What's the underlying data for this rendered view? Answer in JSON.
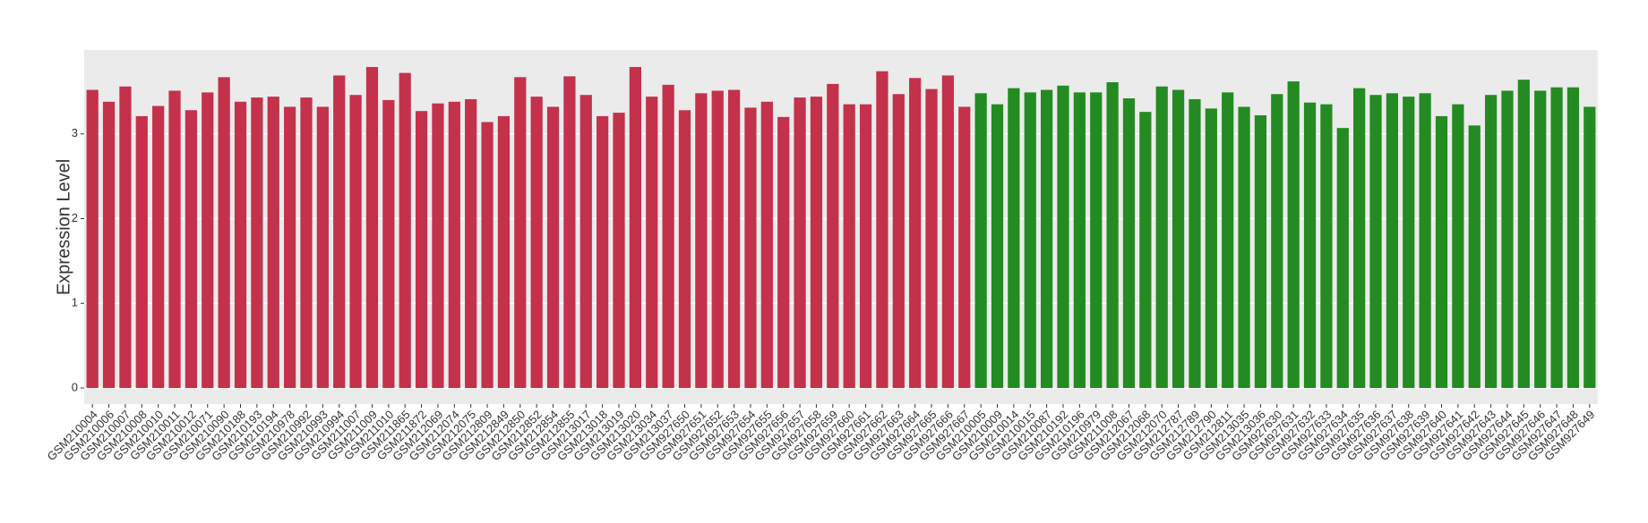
{
  "chart_data": {
    "type": "bar",
    "y_label": "Expression Level",
    "categories": [
      "GSM210004",
      "GSM210006",
      "GSM210007",
      "GSM210008",
      "GSM210010",
      "GSM210011",
      "GSM210012",
      "GSM210071",
      "GSM210090",
      "GSM210188",
      "GSM210193",
      "GSM210194",
      "GSM210978",
      "GSM210992",
      "GSM210993",
      "GSM210994",
      "GSM211007",
      "GSM211009",
      "GSM211010",
      "GSM211865",
      "GSM211872",
      "GSM212069",
      "GSM212074",
      "GSM212075",
      "GSM212809",
      "GSM212849",
      "GSM212850",
      "GSM212852",
      "GSM212854",
      "GSM212855",
      "GSM213017",
      "GSM213018",
      "GSM213019",
      "GSM213020",
      "GSM213034",
      "GSM213037",
      "GSM927650",
      "GSM927651",
      "GSM927652",
      "GSM927653",
      "GSM927654",
      "GSM927655",
      "GSM927656",
      "GSM927657",
      "GSM927658",
      "GSM927659",
      "GSM927660",
      "GSM927661",
      "GSM927662",
      "GSM927663",
      "GSM927664",
      "GSM927665",
      "GSM927666",
      "GSM927667",
      "GSM210005",
      "GSM210009",
      "GSM210014",
      "GSM210015",
      "GSM210087",
      "GSM210192",
      "GSM210196",
      "GSM210979",
      "GSM211008",
      "GSM212067",
      "GSM212068",
      "GSM212070",
      "GSM212787",
      "GSM212789",
      "GSM212790",
      "GSM212811",
      "GSM213035",
      "GSM213036",
      "GSM927630",
      "GSM927631",
      "GSM927632",
      "GSM927633",
      "GSM927634",
      "GSM927635",
      "GSM927636",
      "GSM927637",
      "GSM927638",
      "GSM927639",
      "GSM927640",
      "GSM927641",
      "GSM927642",
      "GSM927643",
      "GSM927644",
      "GSM927645",
      "GSM927646",
      "GSM927647",
      "GSM927648",
      "GSM927649"
    ],
    "values": [
      3.52,
      3.38,
      3.56,
      3.21,
      3.33,
      3.51,
      3.28,
      3.49,
      3.67,
      3.38,
      3.43,
      3.44,
      3.32,
      3.43,
      3.32,
      3.69,
      3.46,
      3.79,
      3.4,
      3.72,
      3.27,
      3.36,
      3.38,
      3.41,
      3.14,
      3.21,
      3.67,
      3.44,
      3.32,
      3.68,
      3.46,
      3.21,
      3.25,
      3.79,
      3.44,
      3.58,
      3.28,
      3.48,
      3.51,
      3.52,
      3.31,
      3.38,
      3.2,
      3.43,
      3.44,
      3.59,
      3.35,
      3.35,
      3.74,
      3.47,
      3.66,
      3.53,
      3.69,
      3.32,
      3.48,
      3.35,
      3.54,
      3.49,
      3.52,
      3.57,
      3.49,
      3.49,
      3.61,
      3.42,
      3.26,
      3.56,
      3.52,
      3.41,
      3.3,
      3.49,
      3.32,
      3.22,
      3.47,
      3.62,
      3.37,
      3.35,
      3.07,
      3.54,
      3.46,
      3.48,
      3.44,
      3.48,
      3.21,
      3.35,
      3.1,
      3.46,
      3.51,
      3.64,
      3.51,
      3.55,
      3.55,
      3.32
    ],
    "colors": [
      "#c4314b",
      "#c4314b",
      "#c4314b",
      "#c4314b",
      "#c4314b",
      "#c4314b",
      "#c4314b",
      "#c4314b",
      "#c4314b",
      "#c4314b",
      "#c4314b",
      "#c4314b",
      "#c4314b",
      "#c4314b",
      "#c4314b",
      "#c4314b",
      "#c4314b",
      "#c4314b",
      "#c4314b",
      "#c4314b",
      "#c4314b",
      "#c4314b",
      "#c4314b",
      "#c4314b",
      "#c4314b",
      "#c4314b",
      "#c4314b",
      "#c4314b",
      "#c4314b",
      "#c4314b",
      "#c4314b",
      "#c4314b",
      "#c4314b",
      "#c4314b",
      "#c4314b",
      "#c4314b",
      "#c4314b",
      "#c4314b",
      "#c4314b",
      "#c4314b",
      "#c4314b",
      "#c4314b",
      "#c4314b",
      "#c4314b",
      "#c4314b",
      "#c4314b",
      "#c4314b",
      "#c4314b",
      "#c4314b",
      "#c4314b",
      "#c4314b",
      "#c4314b",
      "#c4314b",
      "#c4314b",
      "#238b22",
      "#238b22",
      "#238b22",
      "#238b22",
      "#238b22",
      "#238b22",
      "#238b22",
      "#238b22",
      "#238b22",
      "#238b22",
      "#238b22",
      "#238b22",
      "#238b22",
      "#238b22",
      "#238b22",
      "#238b22",
      "#238b22",
      "#238b22",
      "#238b22",
      "#238b22",
      "#238b22",
      "#238b22",
      "#238b22",
      "#238b22",
      "#238b22",
      "#238b22",
      "#238b22",
      "#238b22",
      "#238b22",
      "#238b22",
      "#238b22",
      "#238b22",
      "#238b22",
      "#238b22",
      "#238b22",
      "#238b22",
      "#238b22",
      "#238b22"
    ],
    "ylim": [
      -0.19,
      3.99
    ],
    "yticks": [
      0,
      1,
      2,
      3
    ],
    "grid": true
  }
}
